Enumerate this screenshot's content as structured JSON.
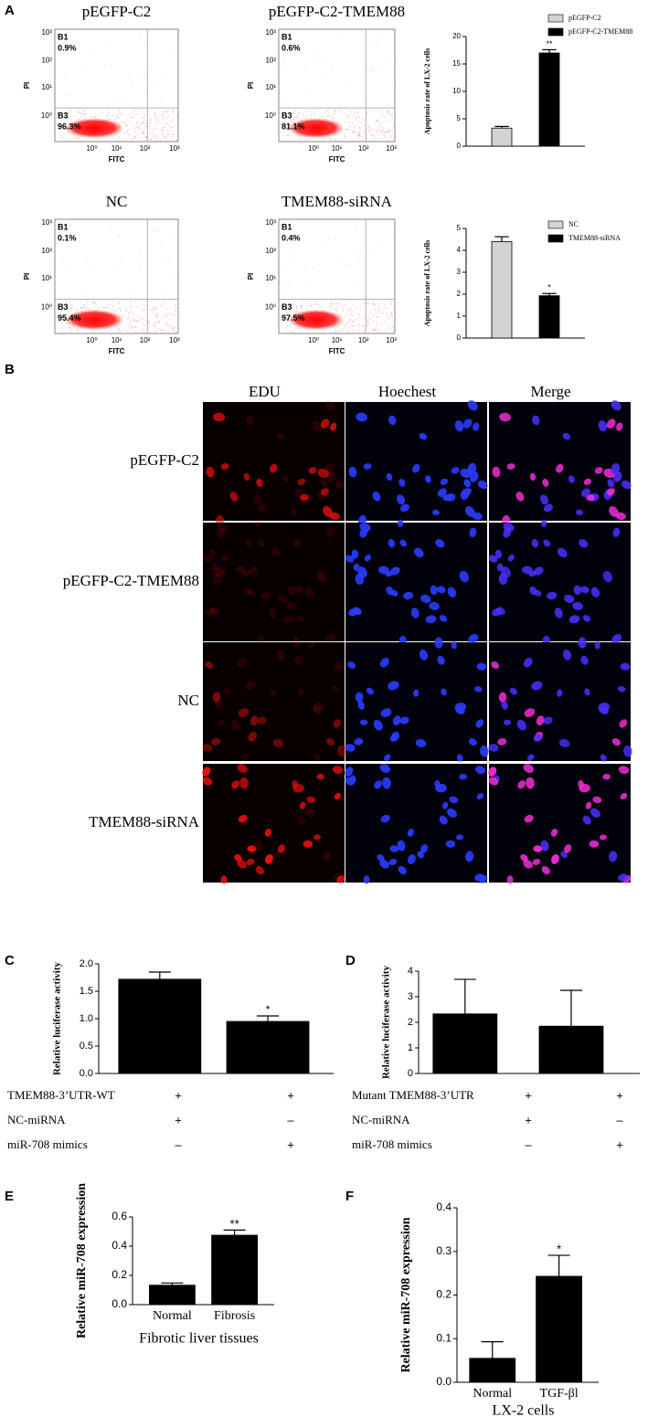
{
  "panels": [
    "A",
    "B",
    "C",
    "D",
    "E",
    "F"
  ],
  "flow_plots": [
    {
      "title": "pEGFP-C2",
      "xlabel": "FITC",
      "ylabel": "PI",
      "ticks": [
        "10⁰",
        "10¹",
        "10²",
        "10³"
      ],
      "gates": [
        {
          "name": "B1",
          "percent": "0.9%"
        },
        {
          "name": "B3",
          "percent": "96.3%"
        }
      ]
    },
    {
      "title": "pEGFP-C2-TMEM88",
      "xlabel": "FITC",
      "ylabel": "PI",
      "ticks": [
        "10⁰",
        "10¹",
        "10²",
        "10³"
      ],
      "gates": [
        {
          "name": "B1",
          "percent": "0.6%"
        },
        {
          "name": "B3",
          "percent": "81.1%"
        }
      ]
    },
    {
      "title": "NC",
      "xlabel": "FITC",
      "ylabel": "PI",
      "ticks": [
        "10⁰",
        "10¹",
        "10²",
        "10³"
      ],
      "gates": [
        {
          "name": "B1",
          "percent": "0.1%"
        },
        {
          "name": "B3",
          "percent": "95.4%"
        }
      ]
    },
    {
      "title": "TMEM88-siRNA",
      "xlabel": "FITC",
      "ylabel": "PI",
      "ticks": [
        "10⁰",
        "10¹",
        "10²",
        "10³"
      ],
      "gates": [
        {
          "name": "B1",
          "percent": "0.4%"
        },
        {
          "name": "B3",
          "percent": "97.5%"
        }
      ]
    }
  ],
  "microscopy": {
    "columns": [
      "EDU",
      "Hoechest",
      "Merge"
    ],
    "rows": [
      "pEGFP-C2",
      "pEGFP-C2-TMEM88",
      "NC",
      "TMEM88-siRNA"
    ]
  },
  "chart_data": [
    {
      "type": "bar",
      "ylabel": "Apoptosis rate of LX-2 cells",
      "legend": [
        "pEGFP-C2",
        "pEGFP-C2-TMEM88"
      ],
      "values": [
        3.3,
        17.0
      ],
      "errors": [
        0.3,
        0.6
      ],
      "colors": [
        "#d3d3d3",
        "#000000"
      ],
      "annotations": [
        null,
        "**"
      ],
      "ylim": [
        0,
        20
      ],
      "yticks": [
        0,
        5,
        10,
        15,
        20
      ]
    },
    {
      "type": "bar",
      "ylabel": "Apoptosis rate of LX-2 cells",
      "legend": [
        "NC",
        "TMEM88-siRNA"
      ],
      "values": [
        4.4,
        1.93
      ],
      "errors": [
        0.22,
        0.1
      ],
      "colors": [
        "#d3d3d3",
        "#000000"
      ],
      "annotations": [
        null,
        "*"
      ],
      "ylim": [
        0,
        5
      ],
      "yticks": [
        0,
        1,
        2,
        3,
        4,
        5
      ]
    },
    {
      "type": "bar",
      "ylabel": "Relative luciferase activity",
      "values": [
        1.72,
        0.95
      ],
      "errors": [
        0.13,
        0.1
      ],
      "colors": [
        "#000000",
        "#000000"
      ],
      "annotations": [
        null,
        "*"
      ],
      "ylim": [
        0,
        2
      ],
      "yticks": [
        {
          "value": 0,
          "label": "0.0"
        },
        0.5,
        {
          "value": 1,
          "label": "1.0"
        },
        1.5,
        {
          "value": 2,
          "label": "2.0"
        }
      ],
      "conditions": [
        {
          "label": "TMEM88-3’UTR-WT",
          "marks": [
            "+",
            "+"
          ]
        },
        {
          "label": "NC-miRNA",
          "marks": [
            "+",
            "–"
          ]
        },
        {
          "label": "miR-708 mimics",
          "marks": [
            "–",
            "+"
          ]
        }
      ]
    },
    {
      "type": "bar",
      "ylabel": "Relative luciferase activity",
      "values": [
        2.33,
        1.85
      ],
      "errors": [
        1.35,
        1.4
      ],
      "colors": [
        "#000000",
        "#000000"
      ],
      "ylim": [
        0,
        4
      ],
      "yticks": [
        0,
        1,
        2,
        3,
        4
      ],
      "conditions": [
        {
          "label": "Mutant TMEM88-3’UTR",
          "marks": [
            "+",
            "+"
          ]
        },
        {
          "label": "NC-miRNA",
          "marks": [
            "+",
            "–"
          ]
        },
        {
          "label": "miR-708 mimics",
          "marks": [
            "–",
            "+"
          ]
        }
      ]
    },
    {
      "type": "bar",
      "ylabel": "Relative  miR-708 expression",
      "categories": [
        "Normal",
        "Fibrosis"
      ],
      "xlabel": "Fibrotic liver tissues",
      "values": [
        0.133,
        0.475
      ],
      "errors": [
        0.015,
        0.035
      ],
      "colors": [
        "#000000",
        "#000000"
      ],
      "annotations": [
        null,
        "**"
      ],
      "ylim": [
        0,
        0.6
      ],
      "yticks": [
        {
          "value": 0,
          "label": "0.0"
        },
        0.2,
        0.4,
        0.6
      ]
    },
    {
      "type": "bar",
      "ylabel": "Relative  miR-708 expression",
      "categories": [
        "Normal",
        "TGF-βl"
      ],
      "xlabel": "LX-2 cells",
      "values": [
        0.055,
        0.243
      ],
      "errors": [
        0.038,
        0.048
      ],
      "colors": [
        "#000000",
        "#000000"
      ],
      "annotations": [
        null,
        "*"
      ],
      "ylim": [
        0,
        0.4
      ],
      "yticks": [
        {
          "value": 0,
          "label": "0.0"
        },
        0.1,
        0.2,
        0.3,
        0.4
      ]
    }
  ]
}
